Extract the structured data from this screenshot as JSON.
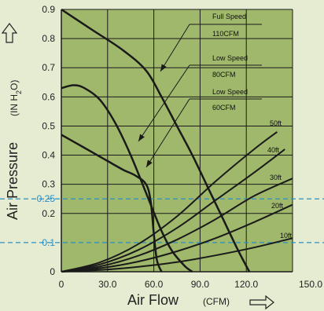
{
  "chart_data": {
    "type": "line",
    "xlabel": "Air Flow",
    "xunit": "(CFM)",
    "ylabel": "Air Pressure",
    "yunit_prefix": "(IN H",
    "yunit_sub": "2",
    "yunit_suffix": "O)",
    "xlim": [
      0,
      150
    ],
    "ylim": [
      0,
      0.9
    ],
    "x_ticks": [
      {
        "value": 0,
        "label": "0"
      },
      {
        "value": 30,
        "label": "30.0"
      },
      {
        "value": 60,
        "label": "60.0"
      },
      {
        "value": 90,
        "label": "90.0"
      },
      {
        "value": 120,
        "label": "120.0"
      },
      {
        "value": 150,
        "label": "150.0"
      }
    ],
    "y_ticks": [
      {
        "value": 0,
        "label": "0"
      },
      {
        "value": 0.1,
        "label": "0.1",
        "highlight": true
      },
      {
        "value": 0.2,
        "label": "0.2"
      },
      {
        "value": 0.25,
        "label": "0.25",
        "highlight": true
      },
      {
        "value": 0.3,
        "label": "0.3"
      },
      {
        "value": 0.4,
        "label": "0.4"
      },
      {
        "value": 0.5,
        "label": "0.5"
      },
      {
        "value": 0.6,
        "label": "0.6"
      },
      {
        "value": 0.7,
        "label": "0.7"
      },
      {
        "value": 0.8,
        "label": "0.8"
      },
      {
        "value": 0.9,
        "label": "0.9"
      }
    ],
    "grid": true,
    "reference_lines": [
      0.1,
      0.25
    ],
    "fan_curves": [
      {
        "name": "Full Speed",
        "sub": "110CFM",
        "x": [
          0,
          20,
          40,
          55,
          65,
          75,
          85,
          95,
          105,
          115,
          122
        ],
        "y": [
          0.9,
          0.83,
          0.76,
          0.69,
          0.6,
          0.5,
          0.4,
          0.29,
          0.18,
          0.07,
          0
        ]
      },
      {
        "name": "Low Speed",
        "sub": "80CFM",
        "x": [
          0,
          8,
          15,
          25,
          35,
          45,
          55,
          65,
          72,
          80,
          85
        ],
        "y": [
          0.63,
          0.64,
          0.63,
          0.59,
          0.51,
          0.4,
          0.27,
          0.14,
          0.07,
          0.02,
          0
        ]
      },
      {
        "name": "Low Speed",
        "sub": "60CFM",
        "x": [
          0,
          10,
          20,
          30,
          40,
          48,
          55,
          58,
          60,
          62,
          65
        ],
        "y": [
          0.47,
          0.44,
          0.41,
          0.38,
          0.35,
          0.33,
          0.3,
          0.24,
          0.13,
          0.04,
          0
        ]
      }
    ],
    "system_curves": [
      {
        "name": "10ft",
        "x": [
          0,
          25,
          50,
          75,
          100,
          125,
          150
        ],
        "y": [
          0,
          0.006,
          0.017,
          0.033,
          0.056,
          0.083,
          0.115
        ]
      },
      {
        "name": "20ft",
        "x": [
          0,
          25,
          50,
          75,
          100,
          125,
          150
        ],
        "y": [
          0,
          0.012,
          0.035,
          0.07,
          0.115,
          0.17,
          0.23
        ]
      },
      {
        "name": "30ft",
        "x": [
          0,
          25,
          50,
          75,
          100,
          125,
          150
        ],
        "y": [
          0,
          0.018,
          0.055,
          0.11,
          0.18,
          0.26,
          0.32
        ]
      },
      {
        "name": "40ft",
        "x": [
          0,
          25,
          50,
          75,
          100,
          125,
          145
        ],
        "y": [
          0,
          0.025,
          0.075,
          0.15,
          0.245,
          0.34,
          0.42
        ]
      },
      {
        "name": "50ft",
        "x": [
          0,
          25,
          50,
          75,
          100,
          125,
          140
        ],
        "y": [
          0,
          0.032,
          0.095,
          0.19,
          0.31,
          0.42,
          0.48
        ]
      }
    ],
    "colors": {
      "background": "#e6ecd2",
      "plot": "#9fb86c",
      "line": "#1a1a1a",
      "reference": "#2a8fc4"
    }
  }
}
